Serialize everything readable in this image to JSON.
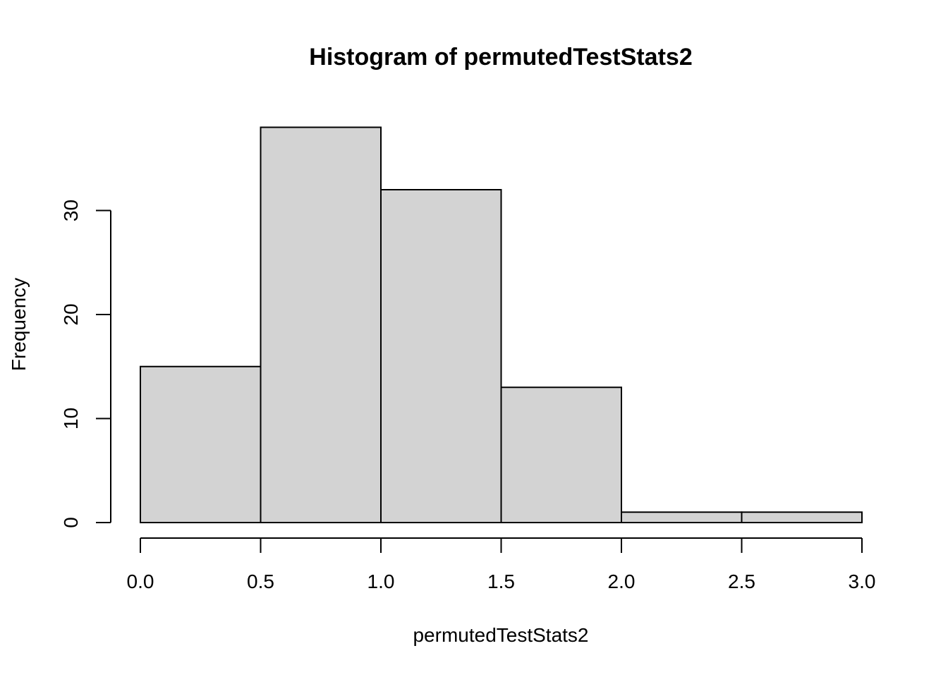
{
  "chart_data": {
    "type": "bar",
    "title": "Histogram of permutedTestStats2",
    "xlabel": "permutedTestStats2",
    "ylabel": "Frequency",
    "bins": [
      {
        "x0": 0.0,
        "x1": 0.5,
        "count": 15
      },
      {
        "x0": 0.5,
        "x1": 1.0,
        "count": 38
      },
      {
        "x0": 1.0,
        "x1": 1.5,
        "count": 32
      },
      {
        "x0": 1.5,
        "x1": 2.0,
        "count": 13
      },
      {
        "x0": 2.0,
        "x1": 2.5,
        "count": 1
      },
      {
        "x0": 2.5,
        "x1": 3.0,
        "count": 1
      }
    ],
    "x_ticks": [
      "0.0",
      "0.5",
      "1.0",
      "1.5",
      "2.0",
      "2.5",
      "3.0"
    ],
    "y_ticks": [
      "0",
      "10",
      "20",
      "30"
    ],
    "xlim": [
      0,
      3
    ],
    "ylim": [
      0,
      38
    ],
    "grid": false,
    "bar_fill": "#d3d3d3",
    "bar_stroke": "#000000"
  }
}
